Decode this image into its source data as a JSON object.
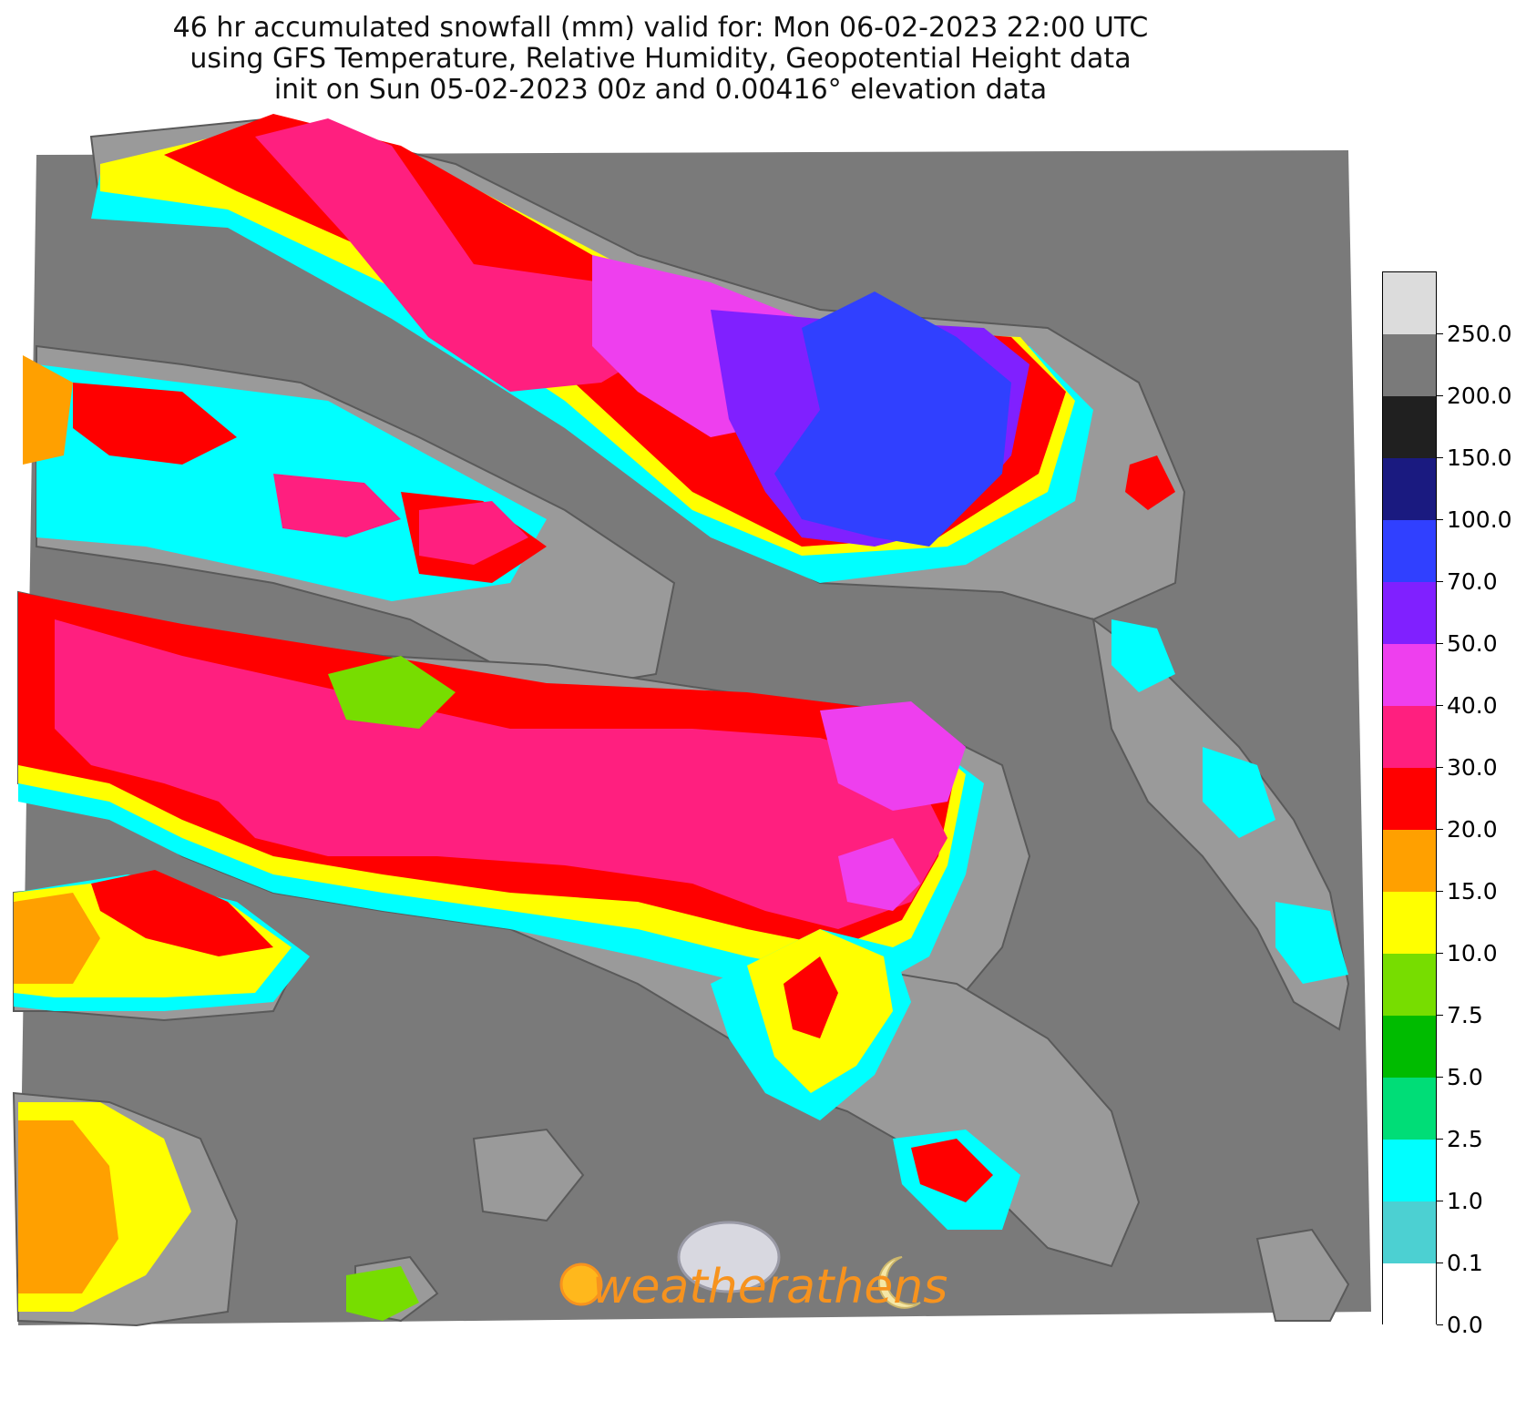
{
  "title": {
    "line1": "46 hr accumulated snowfall (mm) valid for: Mon 06-02-2023 22:00 UTC",
    "line2": "using GFS Temperature, Relative Humidity, Geopotential Height data",
    "line3": "init on Sun 05-02-2023 00z and 0.00416° elevation data"
  },
  "colorbar": {
    "colors": [
      "#ffffff",
      "#4cd0d2",
      "#00ffff",
      "#00dd77",
      "#00bb00",
      "#77dd00",
      "#ffff00",
      "#ffa000",
      "#ff0000",
      "#ff1f7f",
      "#ee3fee",
      "#8020ff",
      "#3040ff",
      "#1a1a80",
      "#202020",
      "#7a7a7a",
      "#dcdcdc"
    ],
    "labels": [
      "0.0",
      "0.1",
      "1.0",
      "2.5",
      "5.0",
      "7.5",
      "10.0",
      "15.0",
      "20.0",
      "30.0",
      "40.0",
      "50.0",
      "70.0",
      "100.0",
      "150.0",
      "200.0",
      "250.0"
    ]
  },
  "map_colors": {
    "sea": "#7a7a7a",
    "terrain": "#9a9a9a",
    "terrain_dark": "#555555"
  },
  "logo": {
    "text": "weatherathens",
    "color": "#f7931e"
  }
}
